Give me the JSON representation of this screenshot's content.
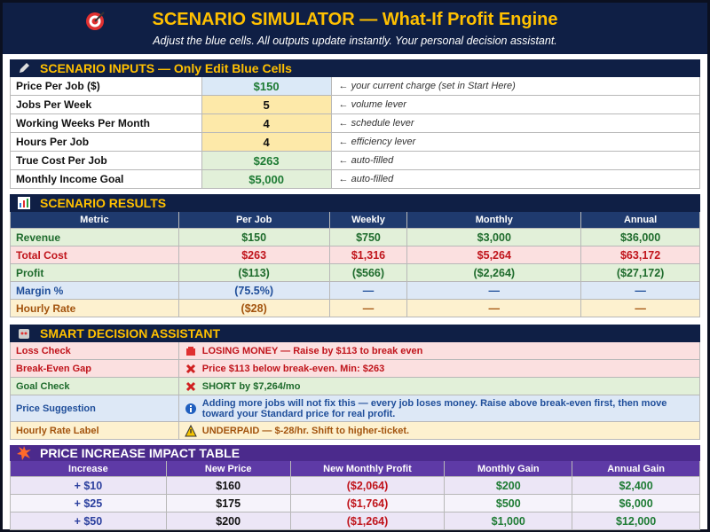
{
  "header": {
    "title": "SCENARIO SIMULATOR — What-If Profit Engine",
    "subtitle": "Adjust the blue cells. All outputs update instantly. Your personal decision assistant."
  },
  "inputs": {
    "title": "SCENARIO INPUTS — Only Edit Blue Cells",
    "rows": [
      {
        "label": "Price Per Job ($)",
        "value": "$150",
        "note": "← your current charge (set in Start Here)"
      },
      {
        "label": "Jobs Per Week",
        "value": "5",
        "note": "← volume lever"
      },
      {
        "label": "Working Weeks Per Month",
        "value": "4",
        "note": "← schedule lever"
      },
      {
        "label": "Hours Per Job",
        "value": "4",
        "note": "← efficiency lever"
      },
      {
        "label": "True Cost Per Job",
        "value": "$263",
        "note": "← auto-filled"
      },
      {
        "label": "Monthly Income Goal",
        "value": "$5,000",
        "note": "← auto-filled"
      }
    ]
  },
  "results": {
    "title": "SCENARIO RESULTS",
    "columns": [
      "Metric",
      "Per Job",
      "Weekly",
      "Monthly",
      "Annual"
    ],
    "rows": [
      [
        "Revenue",
        "$150",
        "$750",
        "$3,000",
        "$36,000"
      ],
      [
        "Total Cost",
        "$263",
        "$1,316",
        "$5,264",
        "$63,172"
      ],
      [
        "Profit",
        "($113)",
        "($566)",
        "($2,264)",
        "($27,172)"
      ],
      [
        "Margin %",
        "(75.5%)",
        "—",
        "—",
        "—"
      ],
      [
        "Hourly Rate",
        "($28)",
        "—",
        "—",
        "—"
      ]
    ]
  },
  "assistant": {
    "title": "SMART DECISION ASSISTANT",
    "rows": [
      {
        "label": "Loss Check",
        "message": "LOSING MONEY — Raise by $113 to break even"
      },
      {
        "label": "Break-Even Gap",
        "message": "Price $113 below break-even. Min: $263"
      },
      {
        "label": "Goal Check",
        "message": "SHORT by $7,264/mo"
      },
      {
        "label": "Price Suggestion",
        "message": "Adding more jobs will not fix this — every job loses money. Raise above break-even first, then move toward your Standard price for real profit."
      },
      {
        "label": "Hourly Rate Label",
        "message": "UNDERPAID — $-28/hr. Shift to higher-ticket."
      }
    ]
  },
  "impact": {
    "title": "PRICE INCREASE IMPACT TABLE",
    "columns": [
      "Increase",
      "New Price",
      "New Monthly Profit",
      "Monthly Gain",
      "Annual Gain"
    ],
    "rows": [
      [
        "+ $10",
        "$160",
        "($2,064)",
        "$200",
        "$2,400"
      ],
      [
        "+ $25",
        "$175",
        "($1,764)",
        "$500",
        "$6,000"
      ],
      [
        "+ $50",
        "$200",
        "($1,264)",
        "$1,000",
        "$12,000"
      ]
    ]
  }
}
